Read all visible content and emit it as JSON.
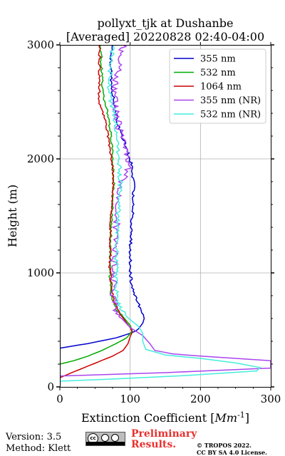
{
  "chart_data": {
    "type": "line",
    "title": "pollyxt_tjk at Dushanbe",
    "subtitle": "[Averaged] 20220828 02:40-04:00",
    "xlabel": "Extinction Coefficient [",
    "xlabel_unit": "Mm",
    "xlabel_exp": "-1",
    "xlabel_end": "]",
    "ylabel": "Height (m)",
    "xlim": [
      0,
      300
    ],
    "ylim": [
      0,
      3000
    ],
    "xticks": [
      0,
      100,
      200,
      300
    ],
    "xtick_labels": [
      "0",
      "100",
      "200",
      "300"
    ],
    "yticks": [
      0,
      1000,
      2000,
      3000
    ],
    "ytick_labels": [
      "0",
      "1000",
      "2000",
      "3000"
    ],
    "grid": true,
    "legend_position": "top-right",
    "series": [
      {
        "name": "355 nm",
        "color": "#0000cc",
        "noise": 2,
        "points": [
          [
            0,
            340
          ],
          [
            40,
            380
          ],
          [
            80,
            430
          ],
          [
            100,
            470
          ],
          [
            108,
            490
          ],
          [
            112,
            510
          ],
          [
            118,
            560
          ],
          [
            120,
            600
          ],
          [
            118,
            650
          ],
          [
            110,
            750
          ],
          [
            102,
            900
          ],
          [
            100,
            1000
          ],
          [
            100,
            1200
          ],
          [
            102,
            1400
          ],
          [
            104,
            1600
          ],
          [
            105,
            1800
          ],
          [
            102,
            1950
          ],
          [
            95,
            2080
          ],
          [
            92,
            2150
          ],
          [
            85,
            2250
          ],
          [
            80,
            2400
          ],
          [
            75,
            2600
          ],
          [
            72,
            2800
          ],
          [
            75,
            3000
          ]
        ]
      },
      {
        "name": "532 nm",
        "color": "#00aa00",
        "noise": 1.5,
        "points": [
          [
            0,
            200
          ],
          [
            20,
            230
          ],
          [
            40,
            270
          ],
          [
            60,
            320
          ],
          [
            80,
            380
          ],
          [
            95,
            430
          ],
          [
            103,
            490
          ],
          [
            100,
            540
          ],
          [
            92,
            600
          ],
          [
            80,
            680
          ],
          [
            72,
            800
          ],
          [
            71,
            1000
          ],
          [
            72,
            1200
          ],
          [
            73,
            1400
          ],
          [
            75,
            1600
          ],
          [
            77,
            1800
          ],
          [
            75,
            2000
          ],
          [
            73,
            2200
          ],
          [
            68,
            2400
          ],
          [
            62,
            2550
          ],
          [
            60,
            2700
          ],
          [
            58,
            3000
          ]
        ]
      },
      {
        "name": "1064 nm",
        "color": "#cc0000",
        "noise": 1.5,
        "points": [
          [
            0,
            80
          ],
          [
            15,
            120
          ],
          [
            35,
            170
          ],
          [
            55,
            220
          ],
          [
            75,
            270
          ],
          [
            90,
            320
          ],
          [
            97,
            380
          ],
          [
            100,
            440
          ],
          [
            103,
            480
          ],
          [
            100,
            520
          ],
          [
            95,
            560
          ],
          [
            86,
            640
          ],
          [
            78,
            740
          ],
          [
            73,
            900
          ],
          [
            71,
            1050
          ],
          [
            72,
            1200
          ],
          [
            72,
            1400
          ],
          [
            74,
            1600
          ],
          [
            76,
            1800
          ],
          [
            75,
            1950
          ],
          [
            70,
            2150
          ],
          [
            64,
            2350
          ],
          [
            56,
            2500
          ],
          [
            56,
            2650
          ],
          [
            57,
            3000
          ]
        ]
      },
      {
        "name": "355 nm (NR)",
        "color": "#aa44ee",
        "noise": 5,
        "points": [
          [
            0,
            95
          ],
          [
            150,
            125
          ],
          [
            300,
            165
          ],
          [
            300,
            230
          ],
          [
            250,
            250
          ],
          [
            200,
            270
          ],
          [
            160,
            290
          ],
          [
            135,
            320
          ],
          [
            128,
            380
          ],
          [
            118,
            450
          ],
          [
            100,
            520
          ],
          [
            88,
            600
          ],
          [
            78,
            700
          ],
          [
            76,
            850
          ],
          [
            76,
            1000
          ],
          [
            78,
            1200
          ],
          [
            80,
            1400
          ],
          [
            83,
            1600
          ],
          [
            88,
            1800
          ],
          [
            100,
            1950
          ],
          [
            92,
            2100
          ],
          [
            85,
            2250
          ],
          [
            80,
            2400
          ],
          [
            78,
            2600
          ],
          [
            82,
            2750
          ],
          [
            88,
            2900
          ],
          [
            90,
            3000
          ]
        ]
      },
      {
        "name": "532 nm (NR)",
        "color": "#44eedd",
        "noise": 3,
        "points": [
          [
            0,
            50
          ],
          [
            80,
            70
          ],
          [
            180,
            100
          ],
          [
            280,
            140
          ],
          [
            285,
            170
          ],
          [
            250,
            210
          ],
          [
            200,
            250
          ],
          [
            150,
            280
          ],
          [
            122,
            330
          ],
          [
            118,
            400
          ],
          [
            118,
            470
          ],
          [
            112,
            530
          ],
          [
            98,
            600
          ],
          [
            85,
            700
          ],
          [
            80,
            850
          ],
          [
            80,
            1000
          ],
          [
            81,
            1200
          ],
          [
            82,
            1400
          ],
          [
            84,
            1600
          ],
          [
            86,
            1800
          ],
          [
            84,
            2000
          ],
          [
            82,
            2200
          ],
          [
            76,
            2400
          ],
          [
            70,
            2600
          ],
          [
            72,
            2800
          ],
          [
            76,
            3000
          ]
        ]
      }
    ]
  },
  "footer": {
    "version": "Version: 3.5",
    "method": "Method: Klett",
    "prelim_1": "Preliminary",
    "prelim_2": "Results.",
    "copyright_1": "© TROPOS 2022.",
    "copyright_2": "CC BY SA 4.0 License.",
    "cc_badge": "cc"
  }
}
